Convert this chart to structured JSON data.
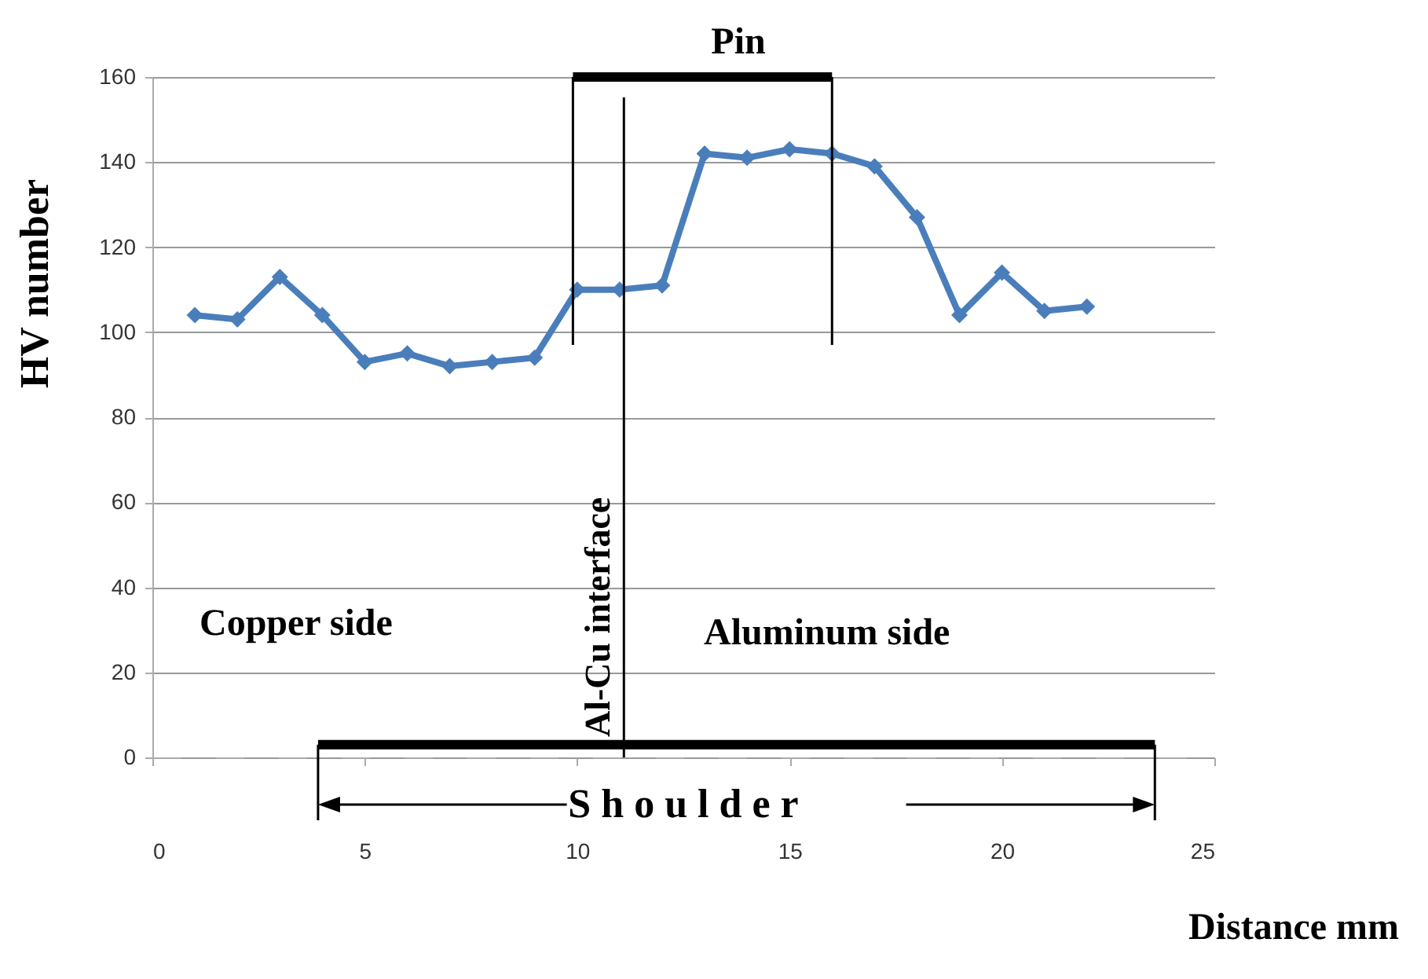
{
  "chart_data": {
    "type": "line",
    "xlabel": "Distance  mm",
    "ylabel": "HV number",
    "x": [
      1,
      2,
      3,
      4,
      5,
      6,
      7,
      8,
      9,
      10,
      11,
      12,
      13,
      14,
      15,
      16,
      17,
      18,
      19,
      20,
      21,
      22
    ],
    "series": [
      {
        "color": "#4a7ebb",
        "marker": "diamond",
        "values": [
          104,
          103,
          113,
          104,
          93,
          95,
          92,
          93,
          94,
          110,
          110,
          111,
          142,
          141,
          143,
          142,
          139,
          127,
          104,
          114,
          105,
          106
        ]
      },
      {
        "color": "#000000",
        "marker": "none",
        "x": [
          9.9,
          16
        ],
        "values": [
          160,
          160
        ]
      },
      {
        "color": "#000000",
        "marker": "none",
        "x": [
          9.9,
          9.9
        ],
        "values": [
          97,
          160
        ]
      },
      {
        "color": "#000000",
        "marker": "none",
        "x": [
          16,
          16
        ],
        "values": [
          97,
          160
        ]
      },
      {
        "color": "#000000",
        "marker": "none",
        "x": [
          3.9,
          23.6
        ],
        "values": [
          3,
          3
        ]
      }
    ],
    "xlim": [
      0,
      25
    ],
    "xticks": [
      0,
      5,
      10,
      15,
      20,
      25
    ],
    "ylim": [
      0,
      160
    ],
    "yticks": [
      0,
      20,
      40,
      60,
      80,
      100,
      120,
      140,
      160
    ],
    "grid": "y",
    "line_style": "solid",
    "ref_lines": [
      {
        "axis": "x",
        "value": 11.1,
        "label": "Al-Cu interface"
      }
    ],
    "annotations": [
      "Pin",
      "S h o u l d e r",
      "Copper side",
      "Aluminum side"
    ]
  }
}
